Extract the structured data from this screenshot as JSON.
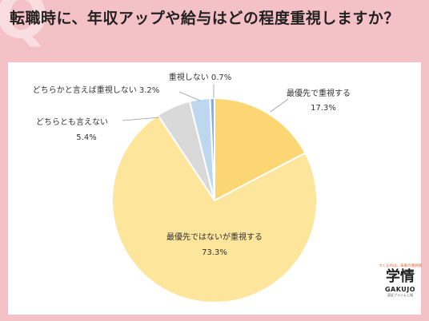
{
  "header": {
    "title": "転職時に、年収アップや給与はどの程度重視しますか？",
    "watermark": "Q"
  },
  "logo": {
    "tagline": "つくるのは、未来の選択肢",
    "name": "学情",
    "sub": "GAKUJO",
    "foot": "東証プライム上場"
  },
  "chart_data": {
    "type": "pie",
    "title": "",
    "start_angle_deg": 0,
    "direction": "clockwise",
    "slices": [
      {
        "label": "最優先で重視する",
        "value": 17.3,
        "value_text": "17.3%",
        "color": "#fbd672"
      },
      {
        "label": "最優先ではないが重視する",
        "value": 73.3,
        "value_text": "73.3%",
        "color": "#fde59b"
      },
      {
        "label": "どちらとも言えない",
        "value": 5.4,
        "value_text": "5.4%",
        "color": "#d9d9d9"
      },
      {
        "label": "どちらかと言えば重視しない",
        "value": 3.2,
        "value_text": "3.2%",
        "color": "#bdd7ee"
      },
      {
        "label": "重視しない",
        "value": 0.7,
        "value_text": "0.7%",
        "color": "#8faadc"
      }
    ]
  }
}
